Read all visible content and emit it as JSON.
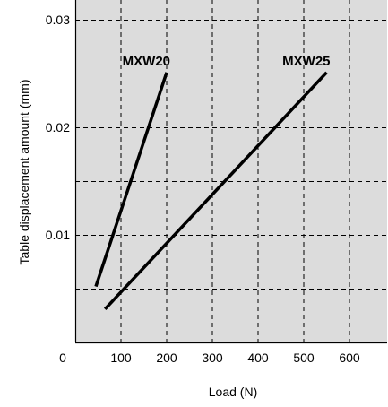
{
  "chart_data": {
    "type": "line",
    "title": "",
    "xlabel": "Load (N)",
    "ylabel": "Table displacement amount (mm)",
    "xlim": [
      0,
      700
    ],
    "ylim": [
      0,
      0.03
    ],
    "x_ticks": [
      0,
      100,
      200,
      300,
      400,
      500,
      600
    ],
    "x_tick_labels": [
      "0",
      "100",
      "200",
      "300",
      "400",
      "500",
      "600"
    ],
    "y_ticks": [
      0.01,
      0.02,
      0.03
    ],
    "y_tick_labels": [
      "0.01",
      "0.02",
      "0.03"
    ],
    "grid": true,
    "legend": "none",
    "background_color": "#dcdcdc",
    "line_color": "#000000",
    "series": [
      {
        "name": "MXW20",
        "x": [
          45,
          200
        ],
        "y": [
          0.0052,
          0.0251
        ]
      },
      {
        "name": "MXW25",
        "x": [
          65,
          550
        ],
        "y": [
          0.0031,
          0.0251
        ]
      }
    ]
  }
}
